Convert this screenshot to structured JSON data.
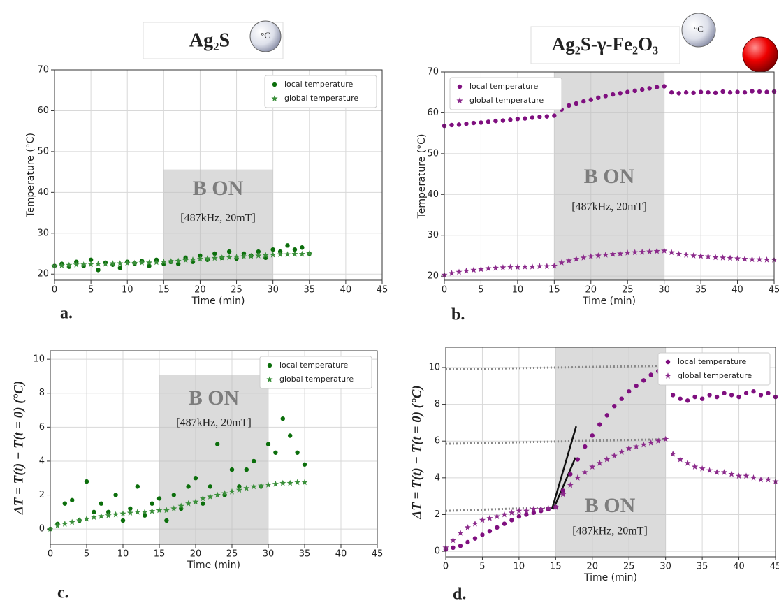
{
  "headers": [
    "Ag₂S",
    "Ag₂S-γ-Fe₂O₃"
  ],
  "icon_label": "°C",
  "chart_data": [
    {
      "type": "scatter",
      "panel_label": "a.",
      "xlabel": "Time (min)",
      "ylabel": "Temperature (°C)",
      "xlim": [
        0,
        45
      ],
      "ylim": [
        18.5,
        70
      ],
      "xticks": [
        0,
        5,
        10,
        15,
        20,
        25,
        30,
        35,
        40,
        45
      ],
      "yticks": [
        20,
        30,
        40,
        50,
        60,
        70
      ],
      "grid": true,
      "legend": "upper right",
      "shade": {
        "x": [
          15,
          30
        ],
        "y": [
          18.5,
          45.6
        ]
      },
      "annotations": [
        "B ON",
        "[487kHz, 20mT]"
      ],
      "x": [
        0,
        1,
        2,
        3,
        4,
        5,
        6,
        7,
        8,
        9,
        10,
        11,
        12,
        13,
        14,
        15,
        16,
        17,
        18,
        19,
        20,
        21,
        22,
        23,
        24,
        25,
        26,
        27,
        28,
        29,
        30,
        31,
        32,
        33,
        34,
        35
      ],
      "series": [
        {
          "name": "local temperature",
          "marker": "circle",
          "color": "#0b6e0b",
          "values": [
            22,
            22.5,
            21.8,
            23,
            22,
            23.5,
            21,
            22.8,
            22.3,
            21.5,
            23,
            22.6,
            23.2,
            22,
            23.5,
            22.5,
            23,
            22.5,
            24,
            23,
            24.5,
            23.5,
            25,
            24,
            25.5,
            23.8,
            25,
            24.5,
            25.5,
            24,
            26,
            25.5,
            27,
            26,
            26.5,
            25
          ]
        },
        {
          "name": "global temperature",
          "marker": "star",
          "color": "#3a8f3a",
          "values": [
            22,
            22.1,
            22.2,
            22.3,
            22.3,
            22.4,
            22.5,
            22.5,
            22.6,
            22.6,
            22.7,
            22.7,
            22.8,
            22.8,
            22.9,
            23,
            23.1,
            23.2,
            23.4,
            23.5,
            23.7,
            23.8,
            23.9,
            24,
            24.1,
            24.2,
            24.3,
            24.4,
            24.5,
            24.6,
            24.7,
            24.8,
            24.8,
            24.9,
            24.9,
            25
          ]
        }
      ]
    },
    {
      "type": "scatter",
      "panel_label": "b.",
      "xlabel": "Time (min)",
      "ylabel": "Temperature (°C)",
      "xlim": [
        0,
        45
      ],
      "ylim": [
        19,
        70
      ],
      "xticks": [
        0,
        5,
        10,
        15,
        20,
        25,
        30,
        35,
        40,
        45
      ],
      "yticks": [
        20,
        30,
        40,
        50,
        60,
        70
      ],
      "grid": true,
      "legend": "upper left",
      "shade": {
        "x": [
          15,
          30
        ],
        "y": [
          19,
          70
        ]
      },
      "annotations": [
        "B ON",
        "[487kHz, 20mT]"
      ],
      "x": [
        0,
        1,
        2,
        3,
        4,
        5,
        6,
        7,
        8,
        9,
        10,
        11,
        12,
        13,
        14,
        15,
        16,
        17,
        18,
        19,
        20,
        21,
        22,
        23,
        24,
        25,
        26,
        27,
        28,
        29,
        30,
        31,
        32,
        33,
        34,
        35,
        36,
        37,
        38,
        39,
        40,
        41,
        42,
        43,
        44,
        45
      ],
      "series": [
        {
          "name": "local temperature",
          "marker": "circle",
          "color": "#7f0f7f",
          "values": [
            56.8,
            57,
            57.1,
            57.3,
            57.5,
            57.6,
            57.8,
            58,
            58.1,
            58.3,
            58.5,
            58.6,
            58.8,
            59,
            59.1,
            59.3,
            60.8,
            61.8,
            62.3,
            62.8,
            63.2,
            63.7,
            64.1,
            64.5,
            64.8,
            65.1,
            65.4,
            65.7,
            66,
            66.3,
            66.5,
            65,
            64.8,
            65,
            64.9,
            65.1,
            65,
            64.9,
            65.2,
            65,
            65.1,
            65,
            65.3,
            65.2,
            65.1,
            65.2
          ]
        },
        {
          "name": "global temperature",
          "marker": "star",
          "color": "#8b2a8b",
          "values": [
            20.3,
            20.7,
            21,
            21.3,
            21.5,
            21.7,
            21.9,
            22,
            22.1,
            22.2,
            22.2,
            22.3,
            22.3,
            22.4,
            22.4,
            22.5,
            23.3,
            23.8,
            24.2,
            24.5,
            24.8,
            25,
            25.2,
            25.4,
            25.5,
            25.7,
            25.8,
            25.9,
            26,
            26.1,
            26.2,
            25.8,
            25.4,
            25.2,
            25,
            24.9,
            24.8,
            24.6,
            24.5,
            24.4,
            24.3,
            24.2,
            24.1,
            24.1,
            24,
            24
          ]
        }
      ]
    },
    {
      "type": "scatter",
      "panel_label": "c.",
      "xlabel": "Time (min)",
      "ylabel": "ΔT = T(t) − T(t = 0) (°C)",
      "xlim": [
        0,
        45
      ],
      "ylim": [
        -0.9,
        10.5
      ],
      "xticks": [
        0,
        5,
        10,
        15,
        20,
        25,
        30,
        35,
        40,
        45
      ],
      "yticks": [
        0,
        2,
        4,
        6,
        8,
        10
      ],
      "grid": true,
      "legend": "upper right",
      "shade": {
        "x": [
          15,
          30
        ],
        "y": [
          -0.9,
          9.1
        ]
      },
      "annotations": [
        "B ON",
        "[487kHz, 20mT]"
      ],
      "x": [
        0,
        1,
        2,
        3,
        4,
        5,
        6,
        7,
        8,
        9,
        10,
        11,
        12,
        13,
        14,
        15,
        16,
        17,
        18,
        19,
        20,
        21,
        22,
        23,
        24,
        25,
        26,
        27,
        28,
        29,
        30,
        31,
        32,
        33,
        34,
        35
      ],
      "series": [
        {
          "name": "local temperature",
          "marker": "circle",
          "color": "#0b6e0b",
          "values": [
            0,
            0.3,
            1.5,
            1.7,
            0.5,
            2.8,
            1,
            1.5,
            1,
            2,
            0.5,
            1.2,
            2.5,
            0.8,
            1.5,
            1.8,
            0.5,
            2,
            1.2,
            2.5,
            3,
            1.5,
            2.5,
            5,
            2,
            3.5,
            2.5,
            3.5,
            4,
            2.5,
            5,
            4.5,
            6.5,
            5.5,
            4.5,
            3.8
          ]
        },
        {
          "name": "global temperature",
          "marker": "star",
          "color": "#3a8f3a",
          "values": [
            0,
            0.2,
            0.3,
            0.4,
            0.5,
            0.6,
            0.7,
            0.75,
            0.8,
            0.85,
            0.9,
            0.95,
            1,
            1,
            1.05,
            1.1,
            1.1,
            1.2,
            1.35,
            1.5,
            1.6,
            1.8,
            1.9,
            2,
            2.1,
            2.2,
            2.3,
            2.4,
            2.5,
            2.55,
            2.6,
            2.65,
            2.7,
            2.7,
            2.75,
            2.75
          ]
        }
      ]
    },
    {
      "type": "scatter",
      "panel_label": "d.",
      "xlabel": "Time (min)",
      "ylabel": "ΔT = T(t) − T(t = 0) (°C)",
      "xlim": [
        0,
        45
      ],
      "ylim": [
        -0.3,
        11.1
      ],
      "xticks": [
        0,
        5,
        10,
        15,
        20,
        25,
        30,
        35,
        40,
        45
      ],
      "yticks": [
        0,
        2,
        4,
        6,
        8,
        10
      ],
      "grid": true,
      "legend": "upper right",
      "shade": {
        "x": [
          15,
          30
        ],
        "y": [
          -0.3,
          11.1
        ]
      },
      "annotations": [
        "B ON",
        "[487kHz, 20mT]"
      ],
      "ref_lines": [
        {
          "style": "dotted",
          "color": "#888888",
          "x": [
            0,
            30
          ],
          "y": [
            9.9,
            10.1
          ]
        },
        {
          "style": "dotted",
          "color": "#888888",
          "x": [
            0,
            30
          ],
          "y": [
            5.85,
            6.1
          ]
        },
        {
          "style": "dotted",
          "color": "#888888",
          "x": [
            0,
            15
          ],
          "y": [
            2.2,
            2.4
          ]
        },
        {
          "style": "solid",
          "color": "#111111",
          "x": [
            14.5,
            17.8
          ],
          "y": [
            2.3,
            6.8
          ]
        },
        {
          "style": "solid",
          "color": "#111111",
          "x": [
            14.7,
            17.7
          ],
          "y": [
            2.3,
            5.1
          ]
        }
      ],
      "x": [
        0,
        1,
        2,
        3,
        4,
        5,
        6,
        7,
        8,
        9,
        10,
        11,
        12,
        13,
        14,
        15,
        16,
        17,
        18,
        19,
        20,
        21,
        22,
        23,
        24,
        25,
        26,
        27,
        28,
        29,
        30,
        31,
        32,
        33,
        34,
        35,
        36,
        37,
        38,
        39,
        40,
        41,
        42,
        43,
        44,
        45
      ],
      "series": [
        {
          "name": "local temperature",
          "marker": "circle",
          "color": "#7f0f7f",
          "values": [
            0.1,
            0.2,
            0.3,
            0.5,
            0.7,
            0.9,
            1.1,
            1.3,
            1.5,
            1.7,
            1.9,
            2,
            2.1,
            2.2,
            2.3,
            2.4,
            3.3,
            4.2,
            5,
            5.7,
            6.3,
            6.9,
            7.4,
            7.9,
            8.3,
            8.7,
            9,
            9.3,
            9.6,
            9.8,
            10,
            8.5,
            8.3,
            8.2,
            8.4,
            8.3,
            8.5,
            8.4,
            8.6,
            8.5,
            8.4,
            8.6,
            8.7,
            8.5,
            8.6,
            8.4
          ]
        },
        {
          "name": "global temperature",
          "marker": "star",
          "color": "#8b2a8b",
          "values": [
            0.2,
            0.6,
            1,
            1.3,
            1.5,
            1.7,
            1.8,
            1.9,
            2,
            2.1,
            2.2,
            2.2,
            2.3,
            2.3,
            2.35,
            2.4,
            3.1,
            3.6,
            4,
            4.3,
            4.6,
            4.8,
            5,
            5.2,
            5.4,
            5.6,
            5.7,
            5.8,
            5.9,
            6,
            6.1,
            5.3,
            5,
            4.8,
            4.6,
            4.5,
            4.4,
            4.3,
            4.3,
            4.2,
            4.1,
            4.1,
            4,
            3.9,
            3.9,
            3.8
          ]
        }
      ]
    }
  ]
}
